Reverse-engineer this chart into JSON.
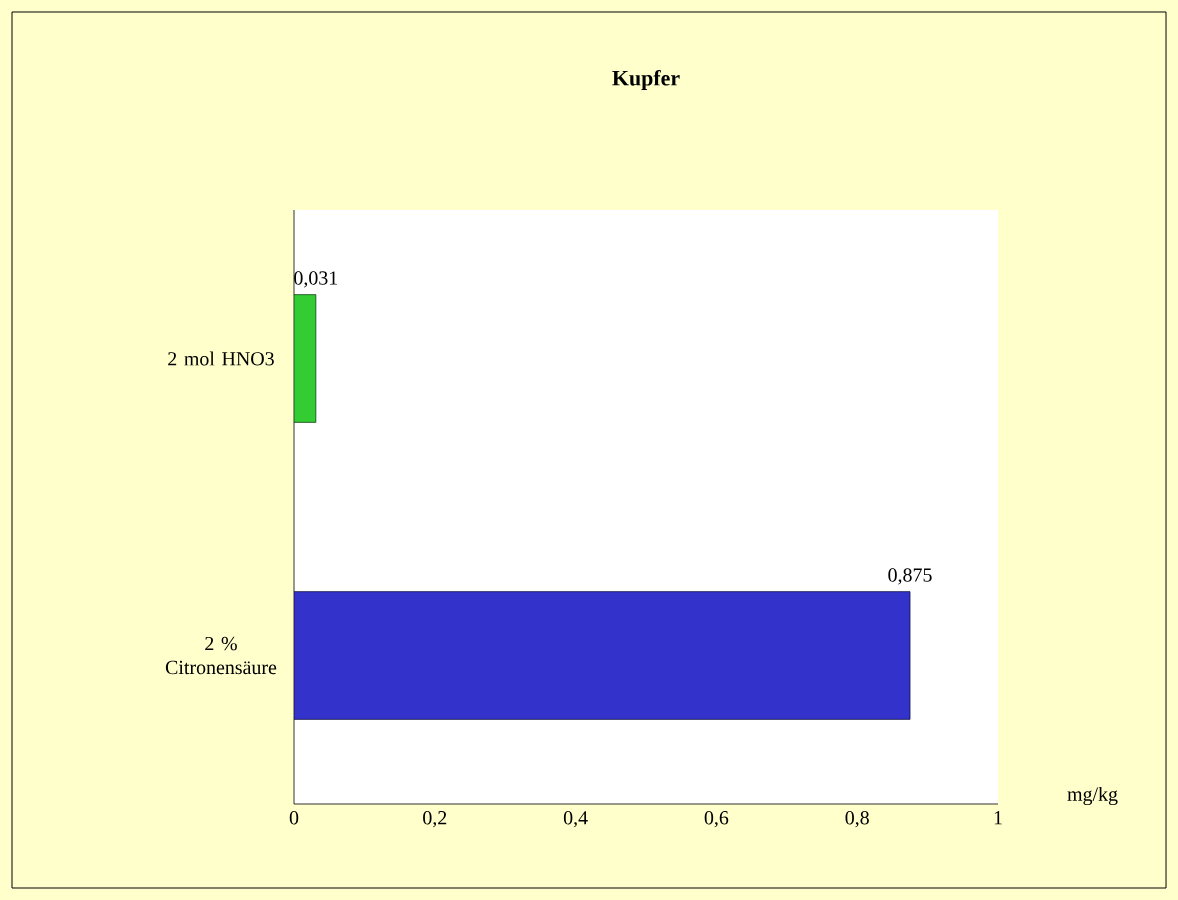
{
  "chart_data": {
    "type": "bar",
    "orientation": "horizontal",
    "title": "Kupfer",
    "xlabel": "mg/kg",
    "categories": [
      "2 mol HNO3",
      "2 % Citronensäure"
    ],
    "values": [
      0.031,
      0.875
    ],
    "colors": [
      "#33cc33",
      "#3333cc"
    ],
    "value_labels": [
      "0,031",
      "0,875"
    ],
    "xlim": [
      0,
      1
    ],
    "xticks": [
      0,
      {
        "value": 0.2,
        "label": "0,2"
      },
      {
        "value": 0.4,
        "label": "0,4"
      },
      {
        "value": 0.6,
        "label": "0,6"
      },
      {
        "value": 0.8,
        "label": "0,8"
      },
      1
    ],
    "grid": false
  }
}
